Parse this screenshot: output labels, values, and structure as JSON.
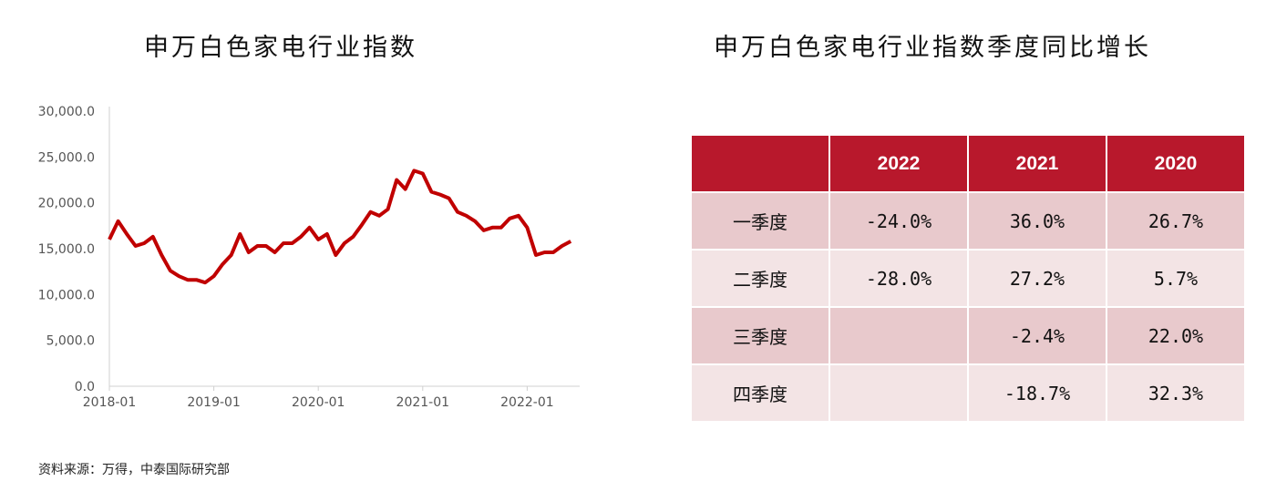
{
  "chart_data": [
    {
      "type": "line",
      "title": "申万白色家电行业指数",
      "ylim": [
        0,
        30000
      ],
      "yticks": [
        "0.0",
        "5,000.0",
        "10,000.0",
        "15,000.0",
        "20,000.0",
        "25,000.0",
        "30,000.0"
      ],
      "ytick_values": [
        0,
        5000,
        10000,
        15000,
        20000,
        25000,
        30000
      ],
      "xticks": [
        "2018-01",
        "2019-01",
        "2020-01",
        "2021-01",
        "2022-01"
      ],
      "x_start": "2018-01",
      "x_step": "month",
      "color": "#c00000",
      "values": [
        16000,
        18000,
        16600,
        15300,
        15600,
        16300,
        14300,
        12600,
        12000,
        11600,
        11600,
        11300,
        12000,
        13300,
        14300,
        16600,
        14600,
        15300,
        15300,
        14600,
        15600,
        15600,
        16300,
        17300,
        16000,
        16600,
        14300,
        15600,
        16300,
        17600,
        19000,
        18600,
        19300,
        22500,
        21500,
        23500,
        23200,
        21200,
        20900,
        20500,
        19000,
        18600,
        18000,
        17000,
        17300,
        17300,
        18300,
        18600,
        17300,
        14300,
        14600,
        14600,
        15300,
        15800
      ]
    },
    {
      "type": "table",
      "title": "申万白色家电行业指数季度同比增长",
      "columns": [
        "",
        "2022",
        "2021",
        "2020"
      ],
      "rows": [
        [
          "一季度",
          "-24.0%",
          "36.0%",
          "26.7%"
        ],
        [
          "二季度",
          "-28.0%",
          "27.2%",
          "5.7%"
        ],
        [
          "三季度",
          "",
          "-2.4%",
          "22.0%"
        ],
        [
          "四季度",
          "",
          "-18.7%",
          "32.3%"
        ]
      ]
    }
  ],
  "source": "资料来源：万得，中泰国际研究部"
}
